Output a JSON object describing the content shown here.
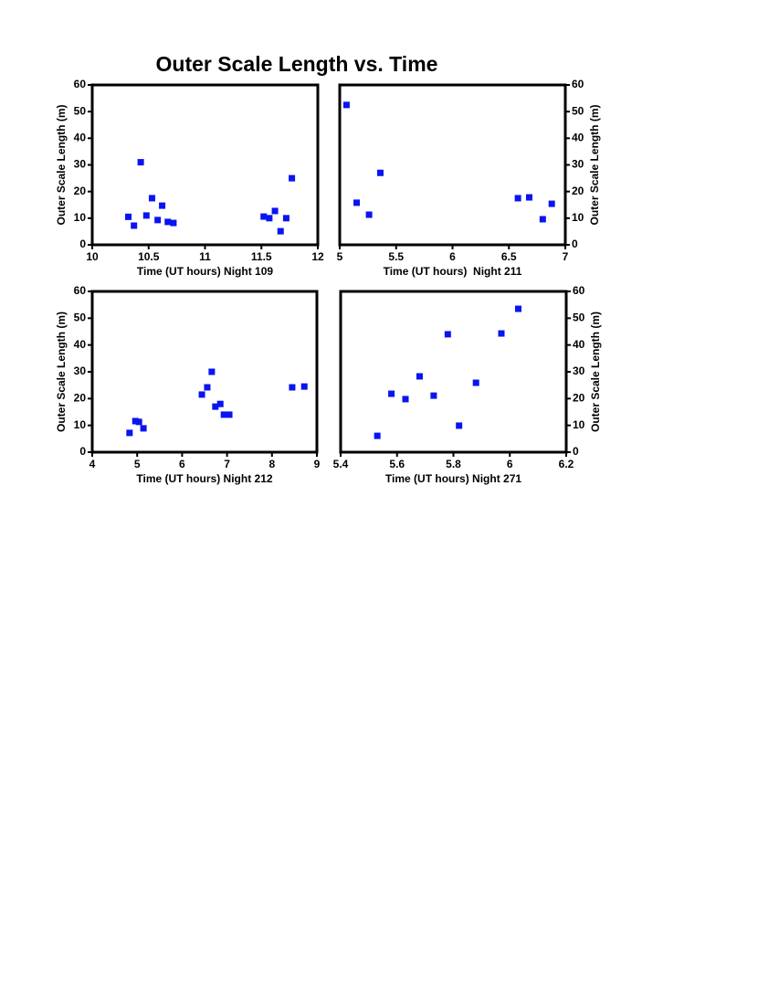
{
  "title": "Outer Scale Length vs. Time",
  "chart_data": [
    {
      "type": "scatter",
      "xlabel": "Time (UT hours) Night 109",
      "ylabel": "Outer Scale Length (m)",
      "y_axis_side": "left",
      "marker": "square",
      "color": "#0a14f0",
      "x": [
        10.32,
        10.37,
        10.43,
        10.48,
        10.53,
        10.58,
        10.62,
        10.67,
        10.72,
        11.52,
        11.57,
        11.62,
        11.67,
        11.72,
        11.77
      ],
      "values": [
        10.5,
        7.2,
        31,
        11,
        17.5,
        9.3,
        14.7,
        8.6,
        8.2,
        10.6,
        10,
        12.7,
        5.1,
        10,
        25
      ],
      "xlim": [
        10,
        12
      ],
      "xticks": [
        10,
        10.5,
        11,
        11.5,
        12
      ],
      "ylim": [
        0,
        60
      ],
      "yticks": [
        0,
        10,
        20,
        30,
        40,
        50,
        60
      ]
    },
    {
      "type": "scatter",
      "xlabel": "Time (UT hours)  Night 211",
      "ylabel": "Outer Scale Length (m)",
      "y_axis_side": "right",
      "marker": "square",
      "color": "#0a14f0",
      "x": [
        5.06,
        5.15,
        5.26,
        5.36,
        6.58,
        6.68,
        6.8,
        6.88
      ],
      "values": [
        52.5,
        15.8,
        11.3,
        27,
        17.5,
        17.8,
        9.6,
        15.4
      ],
      "xlim": [
        5,
        7
      ],
      "xticks": [
        5,
        5.5,
        6,
        6.5,
        7
      ],
      "ylim": [
        0,
        60
      ],
      "yticks": [
        0,
        10,
        20,
        30,
        40,
        50,
        60
      ]
    },
    {
      "type": "scatter",
      "xlabel": "Time (UT hours) Night 212",
      "ylabel": "Outer Scale Length (m)",
      "y_axis_side": "left",
      "marker": "square",
      "color": "#0a14f0",
      "x": [
        4.83,
        4.96,
        5.04,
        5.14,
        6.44,
        6.56,
        6.66,
        6.74,
        6.85,
        6.93,
        7.05,
        8.45,
        8.72
      ],
      "values": [
        7.2,
        11.6,
        11.3,
        8.9,
        21.5,
        24.2,
        30,
        17,
        18,
        14,
        14,
        24.2,
        24.5
      ],
      "xlim": [
        4,
        9
      ],
      "xticks": [
        4,
        5,
        6,
        7,
        8,
        9
      ],
      "ylim": [
        0,
        60
      ],
      "yticks": [
        0,
        10,
        20,
        30,
        40,
        50,
        60
      ]
    },
    {
      "type": "scatter",
      "xlabel": "Time (UT hours) Night 271",
      "ylabel": "Outer Scale Length (m)",
      "y_axis_side": "right",
      "marker": "square",
      "color": "#0a14f0",
      "x": [
        5.53,
        5.58,
        5.63,
        5.68,
        5.73,
        5.78,
        5.82,
        5.88,
        5.97,
        6.03
      ],
      "values": [
        6.1,
        21.8,
        19.8,
        28.3,
        21.1,
        44,
        9.9,
        25.9,
        44.3,
        53.5
      ],
      "xlim": [
        5.4,
        6.2
      ],
      "xticks": [
        5.4,
        5.6,
        5.8,
        6,
        6.2
      ],
      "ylim": [
        0,
        60
      ],
      "yticks": [
        0,
        10,
        20,
        30,
        40,
        50,
        60
      ]
    }
  ]
}
